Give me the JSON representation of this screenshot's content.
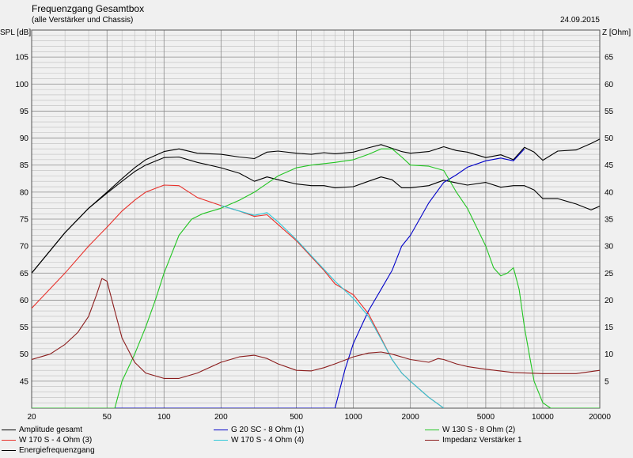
{
  "header": {
    "title": "Frequenzgang Gesamtbox",
    "subtitle": "(alle Verstärker und Chassis)",
    "date": "24.09.2015"
  },
  "chart_data": {
    "type": "line",
    "xscale": "log",
    "xlim": [
      20,
      20000
    ],
    "ylim": [
      40,
      110
    ],
    "y2lim": [
      0,
      70
    ],
    "ylabel": "SPL [dB]",
    "y2label": "Z [Ohm]",
    "xticks": [
      20,
      50,
      100,
      200,
      500,
      1000,
      2000,
      5000,
      10000,
      20000
    ],
    "xtick_labels": [
      "20",
      "50",
      "100",
      "200",
      "500",
      "1000",
      "2000",
      "5000",
      "10000",
      "20000"
    ],
    "yticks": [
      45,
      50,
      55,
      60,
      65,
      70,
      75,
      80,
      85,
      90,
      95,
      100,
      105
    ],
    "y2ticks": [
      5,
      10,
      15,
      20,
      25,
      30,
      35,
      40,
      45,
      50,
      55,
      60,
      65
    ],
    "grid": true,
    "colors": {
      "bg": "#f0f0f0",
      "grid_major": "#8c8c8c",
      "grid_minor": "#bdbdbd"
    },
    "series": [
      {
        "name": "Amplitude gesamt",
        "color": "#000000",
        "axis": "left",
        "x": [
          20,
          30,
          40,
          50,
          60,
          70,
          80,
          100,
          120,
          150,
          200,
          250,
          300,
          350,
          400,
          500,
          600,
          700,
          800,
          1000,
          1200,
          1400,
          1600,
          1800,
          2000,
          2500,
          3000,
          3500,
          4000,
          5000,
          6000,
          7000,
          8000,
          9000,
          10000,
          12000,
          15000,
          18000,
          20000
        ],
        "y": [
          65,
          72.5,
          77,
          80,
          82.5,
          84.5,
          86,
          87.5,
          88,
          87.2,
          87,
          86.5,
          86.2,
          87.4,
          87.6,
          87.2,
          87,
          87.3,
          87.1,
          87.4,
          88.2,
          88.8,
          88.1,
          87.5,
          87.2,
          87.5,
          88.4,
          87.7,
          87.4,
          86.4,
          86.9,
          86,
          88.3,
          87.4,
          85.9,
          87.6,
          87.8,
          89,
          89.8
        ]
      },
      {
        "name": "Energiefrequenzgang",
        "color": "#000000",
        "axis": "left",
        "x": [
          20,
          30,
          40,
          50,
          60,
          70,
          80,
          100,
          120,
          150,
          200,
          250,
          300,
          350,
          400,
          500,
          600,
          700,
          800,
          1000,
          1200,
          1400,
          1600,
          1800,
          2000,
          2500,
          3000,
          3500,
          4000,
          5000,
          6000,
          7000,
          8000,
          9000,
          10000,
          12000,
          15000,
          18000,
          20000
        ],
        "y": [
          65,
          72.5,
          77,
          79.8,
          82,
          83.8,
          85,
          86.4,
          86.5,
          85.5,
          84.5,
          83.5,
          82,
          82.8,
          82.3,
          81.5,
          81.2,
          81.2,
          80.8,
          81,
          82,
          82.8,
          82.3,
          80.8,
          80.8,
          81.2,
          82.2,
          81.7,
          81.3,
          81.8,
          80.9,
          81.2,
          81.2,
          80.4,
          78.8,
          78.8,
          77.8,
          76.7,
          77.4
        ]
      },
      {
        "name": "G 20 SC - 8 Ohm (1)",
        "color": "#0000c8",
        "axis": "left",
        "x": [
          20,
          700,
          800,
          900,
          1000,
          1200,
          1400,
          1600,
          1800,
          2000,
          2500,
          3000,
          3500,
          4000,
          5000,
          6000,
          7000,
          8000
        ],
        "y": [
          40,
          40,
          40,
          47,
          52,
          58,
          62,
          65.5,
          70,
          72,
          78,
          81.8,
          83.2,
          84.6,
          85.8,
          86.3,
          85.8,
          88
        ]
      },
      {
        "name": "W 130 S - 8 Ohm (2)",
        "color": "#22c522",
        "axis": "left",
        "x": [
          20,
          55,
          60,
          70,
          80,
          90,
          100,
          120,
          140,
          160,
          200,
          250,
          300,
          400,
          500,
          600,
          800,
          1000,
          1200,
          1400,
          1600,
          1800,
          2000,
          2500,
          3000,
          3500,
          4000,
          5000,
          5500,
          6000,
          6500,
          7000,
          7500,
          8000,
          9000,
          10000,
          11000,
          20000
        ],
        "y": [
          40,
          40,
          45,
          50,
          55,
          60,
          65,
          72,
          75,
          76,
          77,
          78.5,
          80,
          83,
          84.5,
          85,
          85.5,
          86,
          87,
          88,
          88,
          86.5,
          85,
          84.8,
          84,
          80,
          77,
          70,
          66,
          64.5,
          65,
          66,
          62,
          55,
          45,
          41,
          40,
          40
        ]
      },
      {
        "name": "W 170 S - 4 Ohm (3)",
        "color": "#e8302a",
        "axis": "left",
        "x": [
          20,
          30,
          40,
          50,
          60,
          70,
          80,
          100,
          120,
          150,
          200,
          250,
          300,
          350,
          400,
          500,
          600,
          700,
          800,
          1000,
          1200,
          1400,
          1600,
          1800,
          2000,
          2500,
          3000
        ],
        "y": [
          58.5,
          65,
          70,
          73.5,
          76.5,
          78.5,
          80,
          81.3,
          81.2,
          79,
          77.5,
          76.5,
          75.5,
          75.8,
          74,
          71,
          68,
          65.5,
          63,
          61,
          57.5,
          53,
          49,
          46.5,
          45,
          42,
          40
        ]
      },
      {
        "name": "W 170 S - 4 Ohm (4)",
        "color": "#30c8d8",
        "axis": "left",
        "x": [
          200,
          250,
          300,
          350,
          400,
          500,
          600,
          700,
          800,
          1000,
          1200,
          1400,
          1600,
          1800,
          2000,
          2500,
          3000
        ],
        "y": [
          77.5,
          76.5,
          75.7,
          76.2,
          74.5,
          71.2,
          68.2,
          65.7,
          63.5,
          60.3,
          57,
          52.8,
          49,
          46.5,
          45,
          42,
          40
        ]
      },
      {
        "name": "Impedanz Verstärker 1",
        "color": "#8b1c1c",
        "axis": "right",
        "x": [
          20,
          25,
          30,
          35,
          40,
          44,
          47,
          50,
          55,
          60,
          70,
          80,
          100,
          120,
          150,
          200,
          250,
          300,
          350,
          400,
          500,
          600,
          700,
          800,
          1000,
          1200,
          1400,
          1600,
          2000,
          2500,
          2800,
          3000,
          3500,
          4000,
          5000,
          7000,
          10000,
          15000,
          20000
        ],
        "y": [
          9,
          10,
          11.8,
          14,
          17,
          21,
          24,
          23.5,
          18,
          13,
          8.5,
          6.5,
          5.5,
          5.5,
          6.5,
          8.5,
          9.5,
          9.8,
          9.2,
          8.2,
          7,
          6.9,
          7.5,
          8.2,
          9.5,
          10.2,
          10.4,
          10,
          9,
          8.5,
          9.2,
          9,
          8.2,
          7.7,
          7.2,
          6.6,
          6.4,
          6.4,
          7
        ]
      }
    ]
  },
  "legend": [
    {
      "label": "Amplitude gesamt",
      "color": "#000000"
    },
    {
      "label": "G 20 SC - 8 Ohm (1)",
      "color": "#0000c8"
    },
    {
      "label": "W 130 S - 8 Ohm (2)",
      "color": "#22c522"
    },
    {
      "label": "W 170 S - 4 Ohm (3)",
      "color": "#e8302a"
    },
    {
      "label": "W 170 S - 4 Ohm (4)",
      "color": "#30c8d8"
    },
    {
      "label": "Impedanz Verstärker 1",
      "color": "#8b1c1c"
    },
    {
      "label": "Energiefrequenzgang",
      "color": "#000000"
    }
  ]
}
